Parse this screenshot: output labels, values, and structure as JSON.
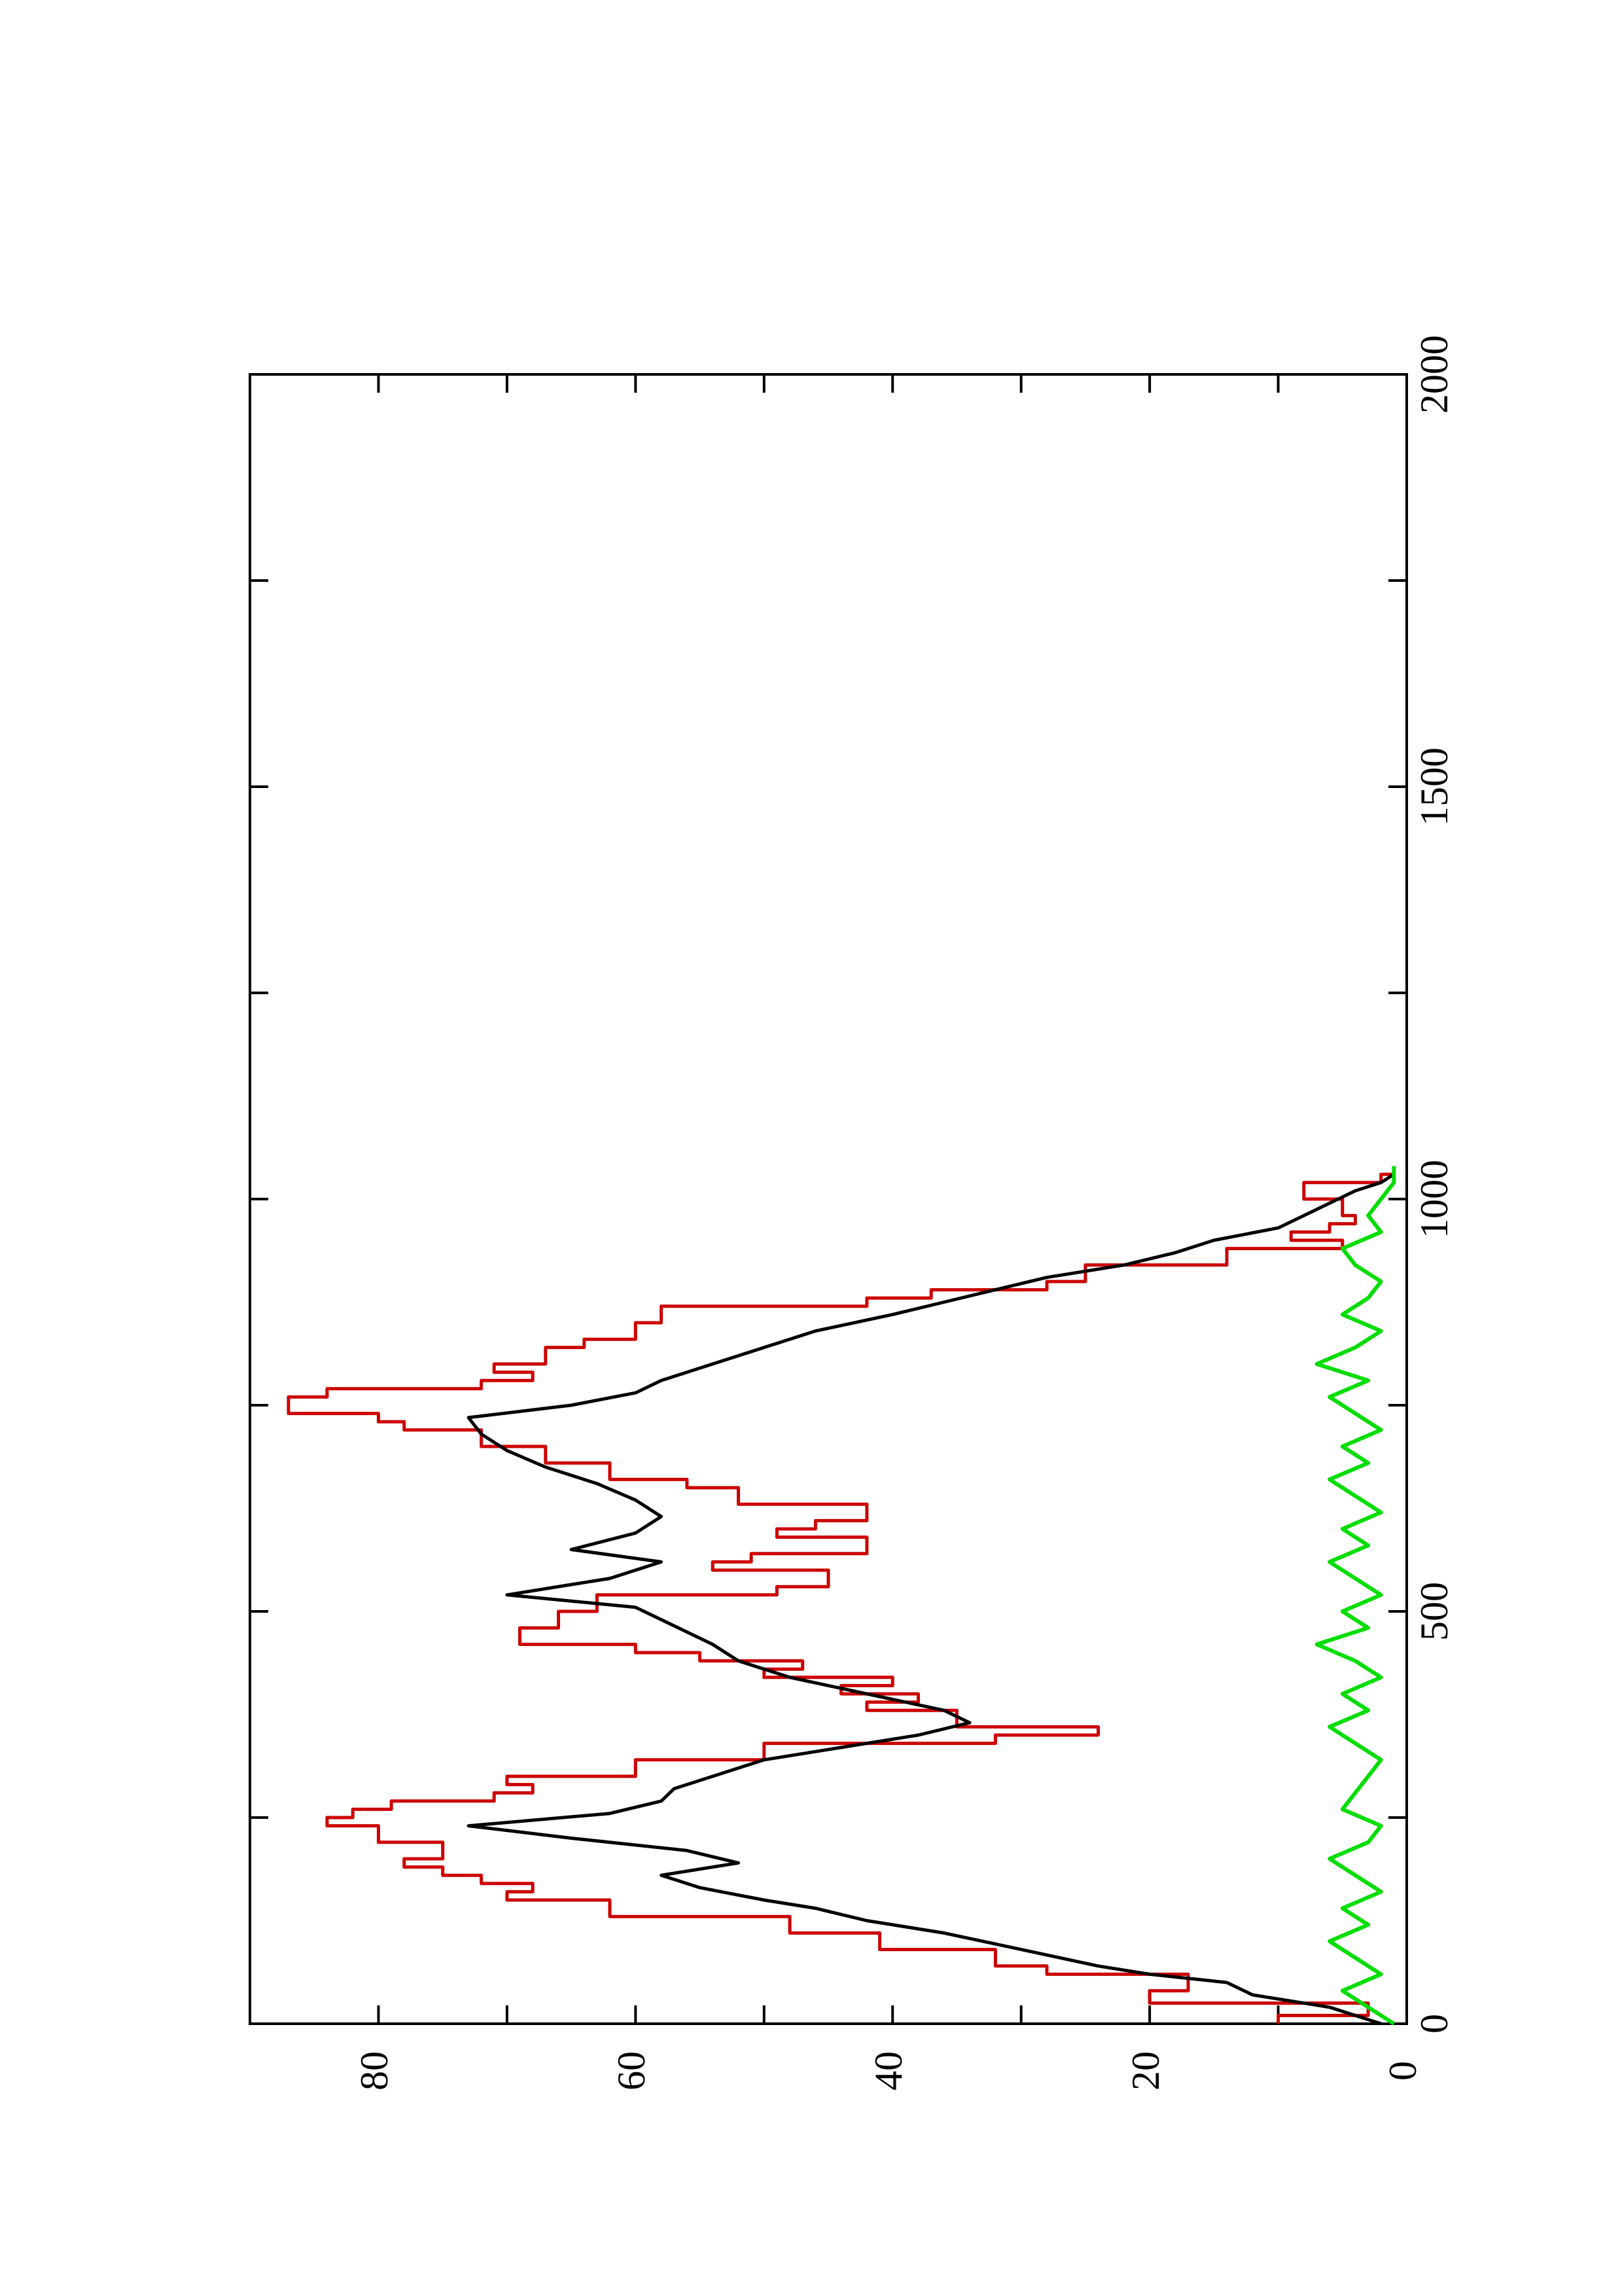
{
  "chart_data": {
    "type": "line",
    "orientation": "rotated-90-ccw",
    "title": "",
    "xlabel": "",
    "ylabel": "",
    "xlim": [
      0,
      2000
    ],
    "ylim": [
      0,
      90
    ],
    "x_ticks": [
      0,
      500,
      1000,
      1500,
      2000
    ],
    "y_ticks": [
      0,
      20,
      40,
      60,
      80
    ],
    "x_tick_labels": [
      "0",
      "500",
      "1000",
      "1500",
      "2000"
    ],
    "y_tick_labels": [
      "0",
      "20",
      "40",
      "60",
      "80"
    ],
    "grid": false,
    "legend": "none",
    "series": [
      {
        "color": "#cc0000",
        "style": "stepped",
        "x": [
          0,
          10,
          25,
          40,
          60,
          70,
          90,
          110,
          130,
          150,
          160,
          170,
          180,
          190,
          200,
          220,
          240,
          250,
          260,
          270,
          280,
          290,
          300,
          320,
          340,
          350,
          360,
          380,
          390,
          400,
          410,
          420,
          430,
          440,
          450,
          460,
          480,
          500,
          520,
          530,
          550,
          560,
          570,
          590,
          600,
          610,
          630,
          650,
          660,
          680,
          700,
          720,
          730,
          740,
          760,
          770,
          780,
          790,
          800,
          820,
          830,
          850,
          870,
          880,
          890,
          900,
          920,
          940,
          950,
          960,
          970,
          980,
          1000,
          1020,
          1030
        ],
        "y": [
          10,
          3,
          20,
          17,
          28,
          32,
          41,
          48,
          62,
          70,
          68,
          72,
          75,
          78,
          75,
          80,
          84,
          82,
          79,
          71,
          68,
          70,
          60,
          50,
          32,
          24,
          35,
          42,
          38,
          44,
          40,
          50,
          47,
          55,
          60,
          69,
          66,
          63,
          49,
          45,
          54,
          51,
          42,
          49,
          46,
          42,
          52,
          56,
          62,
          67,
          72,
          78,
          80,
          87,
          84,
          72,
          68,
          71,
          67,
          64,
          60,
          58,
          42,
          37,
          28,
          25,
          14,
          5,
          9,
          6,
          4,
          5,
          8,
          2,
          1
        ]
      },
      {
        "color": "#000000",
        "style": "line",
        "x": [
          0,
          20,
          35,
          50,
          60,
          70,
          80,
          90,
          110,
          125,
          140,
          150,
          165,
          180,
          195,
          210,
          225,
          240,
          255,
          270,
          285,
          300,
          320,
          335,
          350,
          365,
          380,
          400,
          420,
          440,
          460,
          475,
          490,
          505,
          520,
          540,
          560,
          575,
          595,
          615,
          635,
          655,
          675,
          695,
          715,
          735,
          750,
          765,
          780,
          800,
          820,
          840,
          860,
          875,
          890,
          905,
          920,
          935,
          950,
          965,
          980,
          995,
          1010,
          1020,
          1030
        ],
        "y": [
          2,
          6,
          12,
          14,
          20,
          24,
          27,
          30,
          36,
          42,
          46,
          50,
          55,
          58,
          52,
          56,
          65,
          73,
          62,
          58,
          57,
          54,
          50,
          44,
          38,
          34,
          36,
          42,
          48,
          52,
          54,
          56,
          58,
          60,
          70,
          62,
          58,
          65,
          60,
          58,
          60,
          63,
          67,
          70,
          72,
          73,
          65,
          60,
          58,
          54,
          50,
          46,
          40,
          36,
          32,
          28,
          22,
          18,
          15,
          10,
          8,
          6,
          4,
          2,
          1
        ]
      },
      {
        "color": "#00dd00",
        "style": "noisy",
        "x": [
          0,
          20,
          40,
          60,
          80,
          100,
          120,
          140,
          160,
          180,
          200,
          220,
          240,
          260,
          280,
          300,
          320,
          340,
          360,
          380,
          400,
          420,
          440,
          460,
          480,
          500,
          520,
          540,
          560,
          580,
          600,
          620,
          640,
          660,
          680,
          700,
          720,
          740,
          760,
          780,
          800,
          820,
          840,
          860,
          880,
          900,
          920,
          940,
          960,
          980,
          1000,
          1020,
          1040
        ],
        "y": [
          1,
          3,
          5,
          2,
          4,
          6,
          3,
          5,
          2,
          4,
          6,
          3,
          2,
          5,
          4,
          3,
          2,
          4,
          6,
          3,
          5,
          2,
          4,
          7,
          3,
          5,
          2,
          4,
          6,
          3,
          5,
          2,
          4,
          6,
          3,
          5,
          2,
          4,
          6,
          3,
          7,
          4,
          2,
          5,
          3,
          2,
          4,
          5,
          2,
          3,
          2,
          1,
          1
        ]
      }
    ]
  }
}
